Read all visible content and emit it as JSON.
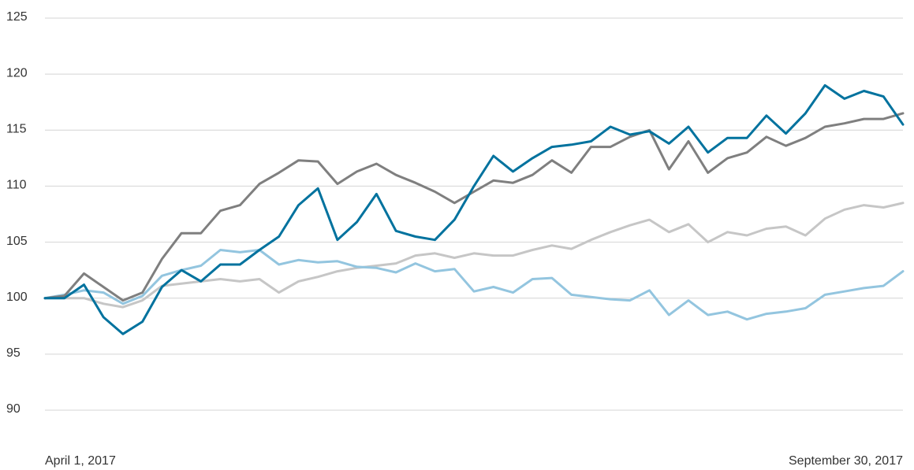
{
  "chart_data": {
    "type": "line",
    "categories": [
      "April 1, 2017",
      null,
      null,
      null,
      null,
      null,
      null,
      null,
      null,
      null,
      null,
      null,
      null,
      null,
      null,
      null,
      null,
      null,
      null,
      null,
      null,
      null,
      null,
      null,
      null,
      null,
      null,
      null,
      null,
      null,
      null,
      null,
      null,
      null,
      null,
      null,
      null,
      null,
      null,
      null,
      null,
      null,
      null,
      null,
      "September 30, 2017"
    ],
    "series": [
      {
        "color": "#c6c6c6",
        "values": [
          100,
          100,
          100,
          99.5,
          99.2,
          99.8,
          101.1,
          101.3,
          101.5,
          101.7,
          101.5,
          101.7,
          100.5,
          101.5,
          101.9,
          102.4,
          102.7,
          102.9,
          103.1,
          103.8,
          104,
          103.6,
          104,
          103.8,
          103.8,
          104.3,
          104.7,
          104.4,
          105.2,
          105.9,
          106.5,
          107,
          105.9,
          106.6,
          105,
          105.9,
          105.6,
          106.2,
          106.4,
          105.6,
          107.1,
          107.9,
          108.3,
          108.1,
          108.5
        ]
      },
      {
        "color": "#93c5df",
        "values": [
          100,
          100.3,
          100.7,
          100.5,
          99.5,
          100.2,
          102,
          102.5,
          102.9,
          104.3,
          104.1,
          104.3,
          103,
          103.4,
          103.2,
          103.3,
          102.8,
          102.7,
          102.3,
          103.1,
          102.4,
          102.6,
          100.6,
          101,
          100.5,
          101.7,
          101.8,
          100.3,
          100.1,
          99.9,
          99.8,
          100.7,
          98.5,
          99.8,
          98.5,
          98.8,
          98.1,
          98.6,
          98.8,
          99.1,
          100.3,
          100.6,
          100.9,
          101.1,
          102.4
        ]
      },
      {
        "color": "#7f7f7f",
        "values": [
          100,
          100.2,
          102.2,
          101,
          99.8,
          100.5,
          103.5,
          105.8,
          105.8,
          107.8,
          108.3,
          110.2,
          111.2,
          112.3,
          112.2,
          110.2,
          111.3,
          112,
          111,
          110.3,
          109.5,
          108.5,
          109.5,
          110.5,
          110.3,
          111,
          112.3,
          111.2,
          113.5,
          113.5,
          114.4,
          115,
          111.5,
          114,
          111.2,
          112.5,
          113,
          114.4,
          113.6,
          114.3,
          115.3,
          115.6,
          116,
          116,
          116.5
        ]
      },
      {
        "color": "#00729e",
        "values": [
          100,
          100,
          101.2,
          98.3,
          96.8,
          97.9,
          101,
          102.5,
          101.5,
          103,
          103,
          104.3,
          105.5,
          108.3,
          109.8,
          105.2,
          106.8,
          109.3,
          106,
          105.5,
          105.2,
          107,
          110,
          112.7,
          111.3,
          112.5,
          113.5,
          113.7,
          114,
          115.3,
          114.6,
          114.9,
          113.8,
          115.3,
          113,
          114.3,
          114.3,
          116.3,
          114.7,
          116.5,
          119,
          117.8,
          118.5,
          118,
          115.5
        ]
      }
    ],
    "ylim": [
      90,
      125
    ],
    "yticks": [
      90,
      95,
      100,
      105,
      110,
      115,
      120,
      125
    ],
    "grid": true
  }
}
